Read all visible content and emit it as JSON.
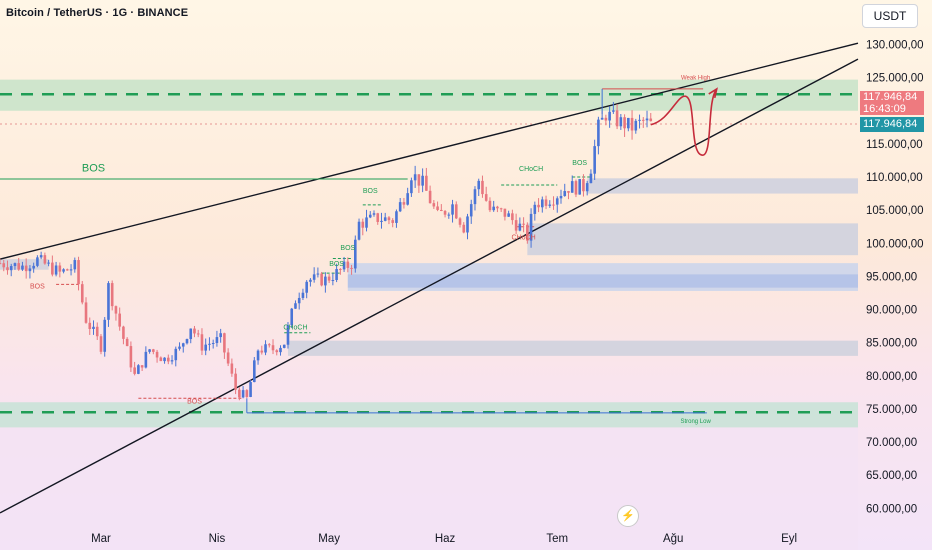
{
  "header": {
    "title": "Bitcoin / TetherUS · 1G · BINANCE",
    "currency": "USDT"
  },
  "price_tags": {
    "last_price": "117.946,84",
    "countdown": "16:43:09",
    "blue_price": "117.946,84"
  },
  "colors": {
    "up": "#4a74d6",
    "down": "#e8767e",
    "support_line": "#1f9d55",
    "trend_line": "#131722",
    "demand_zone": "#b4c3e8",
    "curve": "#c62b3b"
  },
  "chart_data": {
    "type": "candlestick",
    "title": "Bitcoin / TetherUS · 1G · BINANCE",
    "ylim": [
      57000,
      133000
    ],
    "yticks": [
      130000,
      125000,
      120000,
      115000,
      110000,
      105000,
      100000,
      95000,
      90000,
      85000,
      80000,
      75000,
      70000,
      65000,
      60000
    ],
    "ytick_labels": [
      "130.000,00",
      "125.000,00",
      "",
      "115.000,00",
      "110.000,00",
      "105.000,00",
      "100.000,00",
      "95.000,00",
      "90.000,00",
      "85.000,00",
      "80.000,00",
      "75.000,00",
      "70.000,00",
      "65.000,00",
      "60.000,00"
    ],
    "x_labels": [
      {
        "date": "2025-03-01",
        "label": "Mar"
      },
      {
        "date": "2025-04-01",
        "label": "Nis"
      },
      {
        "date": "2025-05-01",
        "label": "May"
      },
      {
        "date": "2025-06-01",
        "label": "Haz"
      },
      {
        "date": "2025-07-01",
        "label": "Tem"
      },
      {
        "date": "2025-08-01",
        "label": "Ağu"
      },
      {
        "date": "2025-09-01",
        "label": "Eyl"
      }
    ],
    "x_range": [
      "2025-02-02",
      "2025-09-29"
    ],
    "candle_anchors": [
      {
        "date": "2025-02-02",
        "close": 97000
      },
      {
        "date": "2025-02-08",
        "close": 96500
      },
      {
        "date": "2025-02-12",
        "close": 97500
      },
      {
        "date": "2025-02-18",
        "close": 95500
      },
      {
        "date": "2025-02-22",
        "close": 96500
      },
      {
        "date": "2025-02-25",
        "close": 88500
      },
      {
        "date": "2025-03-01",
        "close": 84500
      },
      {
        "date": "2025-03-03",
        "close": 93500
      },
      {
        "date": "2025-03-06",
        "close": 87500
      },
      {
        "date": "2025-03-10",
        "close": 80000
      },
      {
        "date": "2025-03-14",
        "close": 84000
      },
      {
        "date": "2025-03-18",
        "close": 82500
      },
      {
        "date": "2025-03-22",
        "close": 84000
      },
      {
        "date": "2025-03-25",
        "close": 87500
      },
      {
        "date": "2025-03-28",
        "close": 84500
      },
      {
        "date": "2025-04-02",
        "close": 85500
      },
      {
        "date": "2025-04-06",
        "close": 78000
      },
      {
        "date": "2025-04-09",
        "close": 76500
      },
      {
        "date": "2025-04-12",
        "close": 84000
      },
      {
        "date": "2025-04-16",
        "close": 84000
      },
      {
        "date": "2025-04-19",
        "close": 85000
      },
      {
        "date": "2025-04-22",
        "close": 91500
      },
      {
        "date": "2025-04-25",
        "close": 94500
      },
      {
        "date": "2025-04-30",
        "close": 94500
      },
      {
        "date": "2025-05-03",
        "close": 95500
      },
      {
        "date": "2025-05-07",
        "close": 97000
      },
      {
        "date": "2025-05-09",
        "close": 103000
      },
      {
        "date": "2025-05-14",
        "close": 103800
      },
      {
        "date": "2025-05-18",
        "close": 103500
      },
      {
        "date": "2025-05-21",
        "close": 107000
      },
      {
        "date": "2025-05-23",
        "close": 110500
      },
      {
        "date": "2025-05-26",
        "close": 109000
      },
      {
        "date": "2025-05-30",
        "close": 104000
      },
      {
        "date": "2025-06-03",
        "close": 105800
      },
      {
        "date": "2025-06-06",
        "close": 102500
      },
      {
        "date": "2025-06-10",
        "close": 109500
      },
      {
        "date": "2025-06-13",
        "close": 105000
      },
      {
        "date": "2025-06-17",
        "close": 104500
      },
      {
        "date": "2025-06-21",
        "close": 102500
      },
      {
        "date": "2025-06-23",
        "close": 101000
      },
      {
        "date": "2025-06-25",
        "close": 106000
      },
      {
        "date": "2025-06-30",
        "close": 107000
      },
      {
        "date": "2025-07-04",
        "close": 108500
      },
      {
        "date": "2025-07-08",
        "close": 108500
      },
      {
        "date": "2025-07-10",
        "close": 111500
      },
      {
        "date": "2025-07-12",
        "close": 117500
      },
      {
        "date": "2025-07-14",
        "close": 119500
      },
      {
        "date": "2025-07-17",
        "close": 118500
      },
      {
        "date": "2025-07-21",
        "close": 117500
      },
      {
        "date": "2025-07-24",
        "close": 118400
      },
      {
        "date": "2025-07-26",
        "close": 117947
      }
    ],
    "annotations": [
      {
        "text": "BOS",
        "color": "#1f9d55"
      },
      {
        "text": "BOS",
        "color": "#d64e4e"
      },
      {
        "text": "BOS",
        "color": "#d64e4e"
      },
      {
        "text": "CHoCH",
        "color": "#1f9d55"
      },
      {
        "text": "BOS",
        "color": "#1f9d55"
      },
      {
        "text": "BOS",
        "color": "#1f9d55"
      },
      {
        "text": "BOS",
        "color": "#1f9d55"
      },
      {
        "text": "CHoCH",
        "color": "#1f9d55"
      },
      {
        "text": "CHoCH",
        "color": "#d64e4e"
      },
      {
        "text": "BOS",
        "color": "#1f9d55"
      },
      {
        "text": "Weak High",
        "color": "#d64e4e"
      },
      {
        "text": "Strong Low",
        "color": "#1f9d55"
      }
    ]
  }
}
